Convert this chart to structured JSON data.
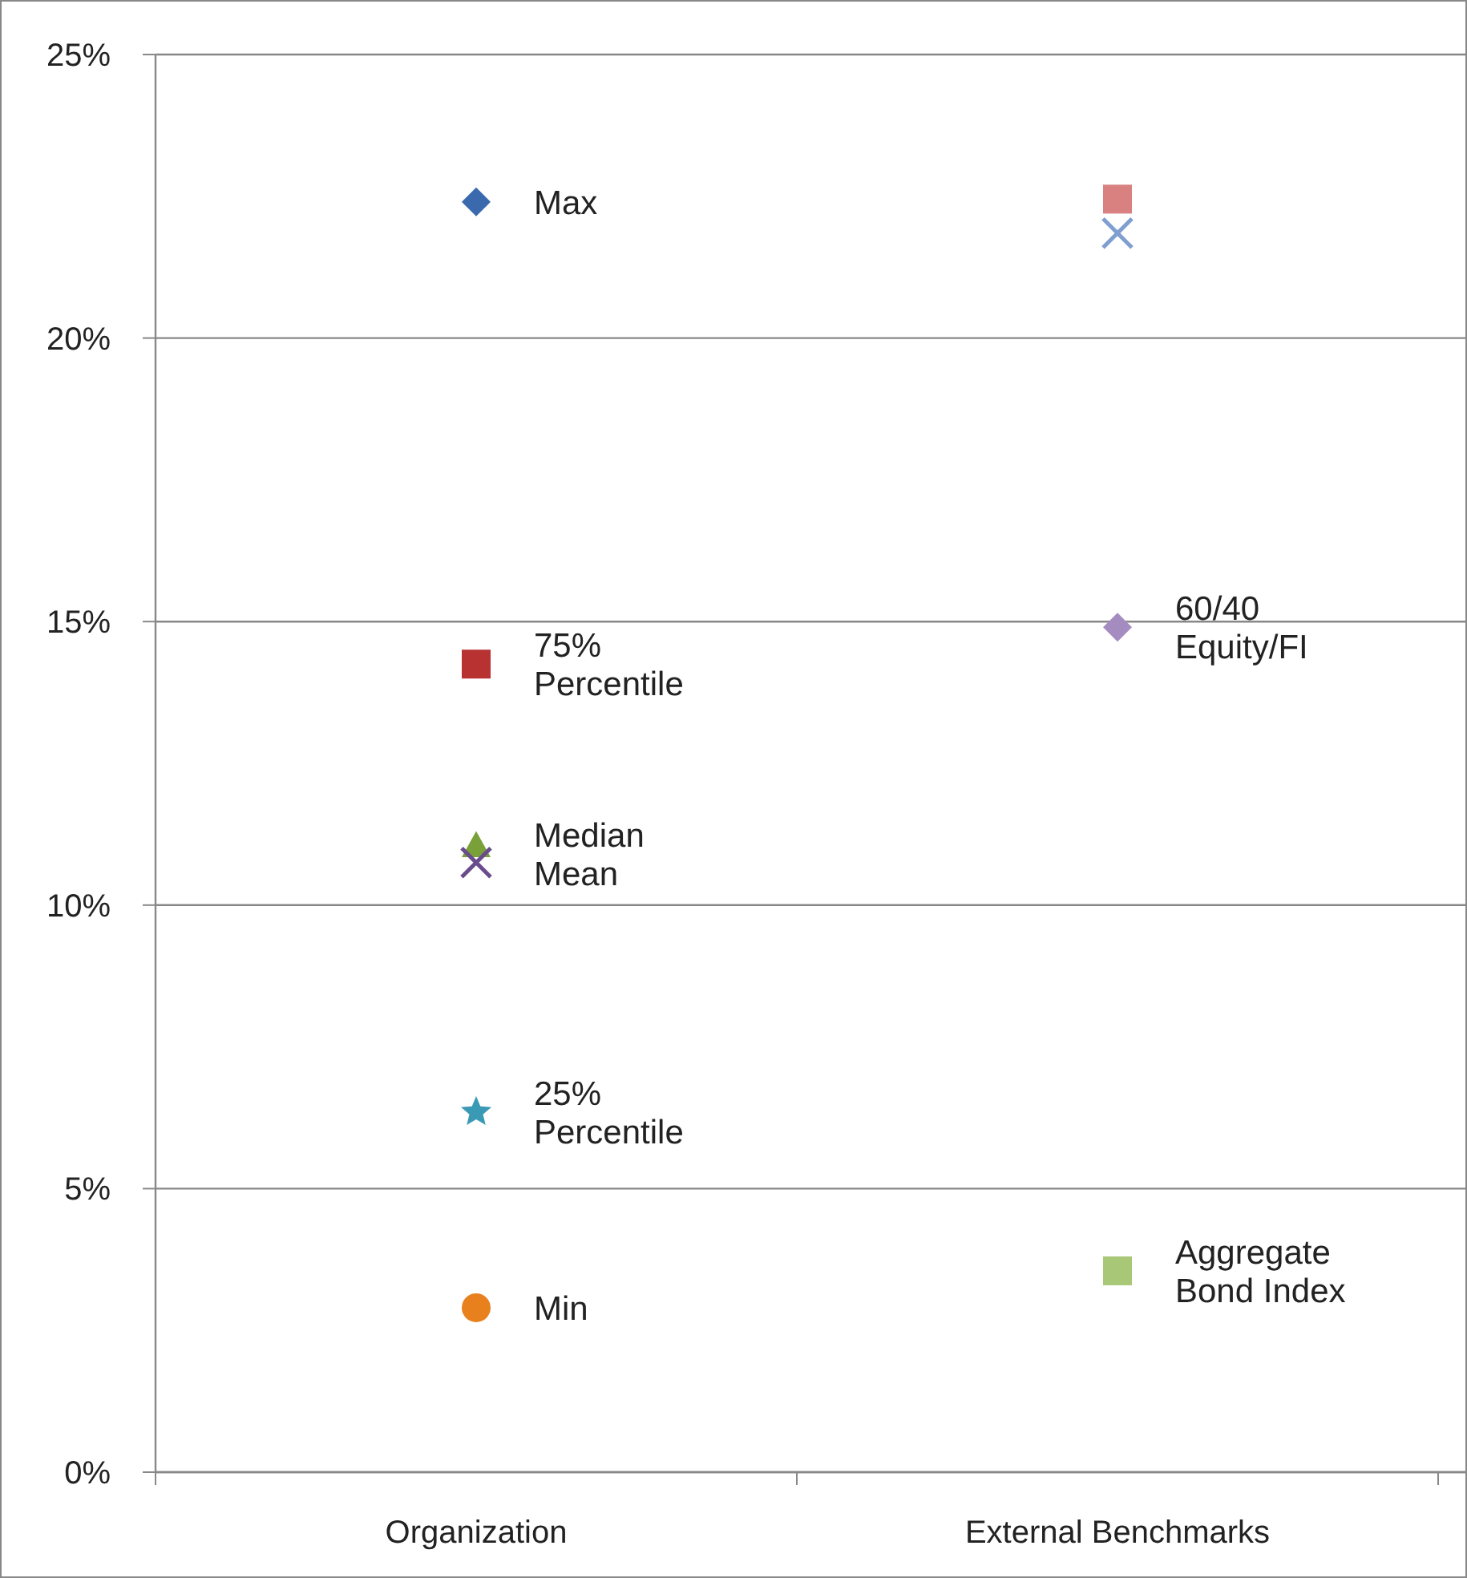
{
  "chart_data": {
    "type": "scatter",
    "categories": [
      "Organization",
      "External Benchmarks"
    ],
    "ylim": [
      0,
      25
    ],
    "yticks": [
      {
        "value": 0,
        "label": "0%"
      },
      {
        "value": 5,
        "label": "5%"
      },
      {
        "value": 10,
        "label": "10%"
      },
      {
        "value": 15,
        "label": "15%"
      },
      {
        "value": 20,
        "label": "20%"
      },
      {
        "value": 25,
        "label": "25%"
      }
    ],
    "grid": "y",
    "series": [
      {
        "name": "Max",
        "color": "#3a6aad",
        "marker": "diamond",
        "x": [
          "Organization"
        ],
        "values": [
          22.4
        ]
      },
      {
        "name": "75% Percentile",
        "color": "#b83232",
        "marker": "square",
        "x": [
          "Organization"
        ],
        "values": [
          14.25
        ]
      },
      {
        "name": "Median",
        "color": "#7aa03a",
        "marker": "triangle",
        "x": [
          "Organization"
        ],
        "values": [
          11.05
        ]
      },
      {
        "name": "Mean",
        "color": "#6a4c8c",
        "marker": "cross",
        "x": [
          "Organization"
        ],
        "values": [
          10.75
        ]
      },
      {
        "name": "25% Percentile",
        "color": "#3a9ab5",
        "marker": "star",
        "x": [
          "Organization"
        ],
        "values": [
          6.35
        ]
      },
      {
        "name": "Min",
        "color": "#e8801e",
        "marker": "circle",
        "x": [
          "Organization"
        ],
        "values": [
          2.9
        ]
      },
      {
        "color": "#d98080",
        "marker": "square",
        "x": [
          "External Benchmarks"
        ],
        "values": [
          22.45
        ]
      },
      {
        "color": "#7f9fd0",
        "marker": "cross",
        "x": [
          "External Benchmarks"
        ],
        "values": [
          21.85
        ]
      },
      {
        "name": "60/40 Equity/FI",
        "color": "#a48cc0",
        "marker": "diamond",
        "x": [
          "External Benchmarks"
        ],
        "values": [
          14.9
        ]
      },
      {
        "name": "Aggregate Bond Index",
        "color": "#a8c878",
        "marker": "square",
        "x": [
          "External Benchmarks"
        ],
        "values": [
          3.55
        ]
      }
    ]
  }
}
